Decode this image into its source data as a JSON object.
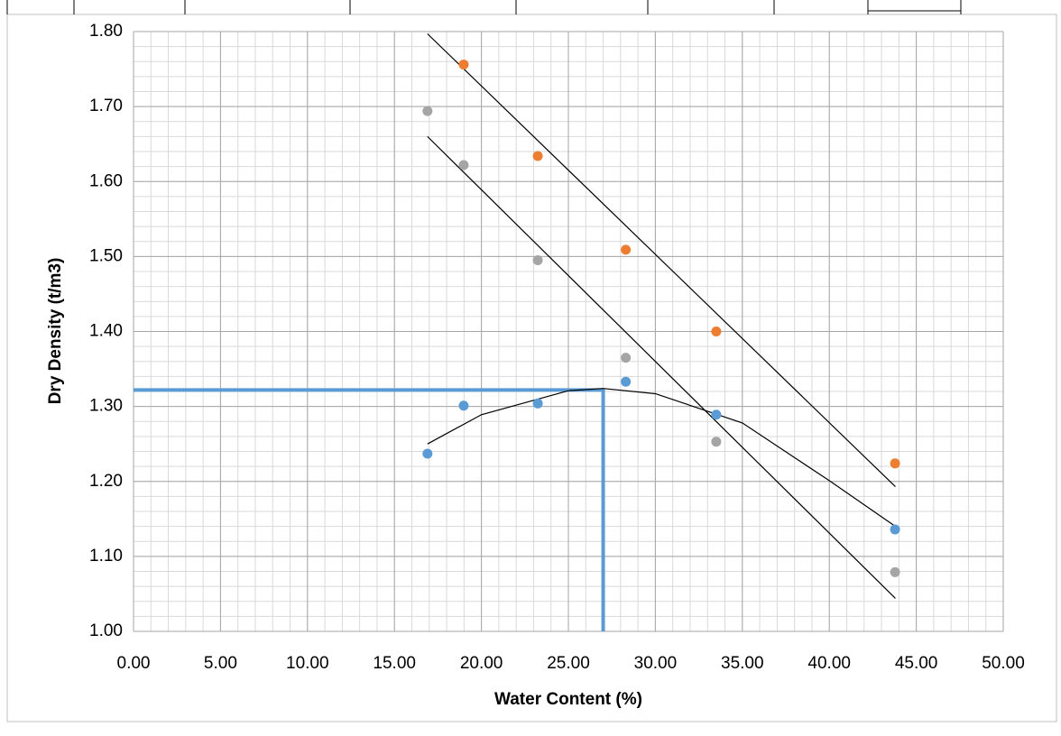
{
  "chart_data": {
    "type": "scatter",
    "x_label": "Water Content (%)",
    "y_label": "Dry Density (t/m3)",
    "xlim": [
      0,
      50
    ],
    "ylim": [
      1.0,
      1.8
    ],
    "xticks": [
      {
        "value": 0,
        "label": "0.00"
      },
      {
        "value": 5,
        "label": "5.00"
      },
      {
        "value": 10,
        "label": "10.00"
      },
      {
        "value": 15,
        "label": "15.00"
      },
      {
        "value": 20,
        "label": "20.00"
      },
      {
        "value": 25,
        "label": "25.00"
      },
      {
        "value": 30,
        "label": "30.00"
      },
      {
        "value": 35,
        "label": "35.00"
      },
      {
        "value": 40,
        "label": "40.00"
      },
      {
        "value": 45,
        "label": "45.00"
      },
      {
        "value": 50,
        "label": "50.00"
      }
    ],
    "yticks": [
      {
        "value": 1.0,
        "label": "1.00"
      },
      {
        "value": 1.1,
        "label": "1.10"
      },
      {
        "value": 1.2,
        "label": "1.20"
      },
      {
        "value": 1.3,
        "label": "1.30"
      },
      {
        "value": 1.4,
        "label": "1.40"
      },
      {
        "value": 1.5,
        "label": "1.50"
      },
      {
        "value": 1.6,
        "label": "1.60"
      },
      {
        "value": 1.7,
        "label": "1.70"
      },
      {
        "value": 1.8,
        "label": "1.80"
      }
    ],
    "grid": true,
    "minor_x_step": 1,
    "minor_y_step": 0.02,
    "series": [
      {
        "color": "#5b9bd5",
        "x": [
          16.9,
          18.98,
          23.24,
          28.3,
          33.5,
          43.78
        ],
        "values": [
          1.237,
          1.301,
          1.304,
          1.333,
          1.289,
          1.136
        ]
      },
      {
        "color": "#ed7d31",
        "x": [
          18.98,
          23.24,
          28.3,
          33.5,
          43.78
        ],
        "values": [
          1.756,
          1.634,
          1.509,
          1.4,
          1.224
        ]
      },
      {
        "color": "#a5a5a5",
        "x": [
          16.9,
          18.98,
          23.24,
          28.3,
          33.5,
          43.78
        ],
        "values": [
          1.694,
          1.622,
          1.495,
          1.365,
          1.253,
          1.079
        ]
      }
    ],
    "trendlines": [
      {
        "color": "#000000",
        "x": [
          16.9,
          20,
          25,
          27,
          30,
          35,
          40,
          43.8
        ],
        "values": [
          1.25,
          1.289,
          1.321,
          1.324,
          1.317,
          1.278,
          1.201,
          1.14
        ]
      },
      {
        "color": "#000000",
        "x": [
          16.9,
          43.8
        ],
        "values": [
          1.797,
          1.193
        ]
      },
      {
        "color": "#000000",
        "x": [
          16.9,
          43.8
        ],
        "values": [
          1.66,
          1.044
        ]
      }
    ],
    "reference": {
      "color": "#5b9bd5",
      "x": 27,
      "y": 1.322
    }
  }
}
